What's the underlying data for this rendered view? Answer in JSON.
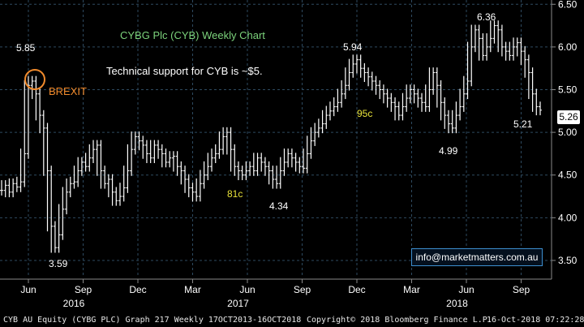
{
  "chart_data": {
    "type": "bar",
    "title": "CYBG Plc (CYB) Weekly Chart",
    "subtitle": "Technical support for CYB is ~$5.",
    "ylim": [
      3.3,
      6.55
    ],
    "y_ticks": [
      "3.50",
      "4.00",
      "4.50",
      "5.00",
      "5.50",
      "6.00",
      "6.50"
    ],
    "x_ticks": [
      {
        "label": "Jun",
        "year": "2016"
      },
      {
        "label": "Sep",
        "year": ""
      },
      {
        "label": "Dec",
        "year": ""
      },
      {
        "label": "Mar",
        "year": "2017"
      },
      {
        "label": "Jun",
        "year": ""
      },
      {
        "label": "Sep",
        "year": ""
      },
      {
        "label": "Dec",
        "year": ""
      },
      {
        "label": "Mar",
        "year": "2018"
      },
      {
        "label": "Jun",
        "year": ""
      },
      {
        "label": "Sep",
        "year": ""
      }
    ],
    "grid": true,
    "series": [
      {
        "values": [
          4.32,
          4.38,
          4.3,
          4.4,
          4.36,
          4.42,
          4.75,
          5.55,
          5.6,
          5.45,
          5.2,
          5.05,
          4.55,
          3.9,
          3.65,
          3.8,
          4.1,
          4.3,
          4.4,
          4.42,
          4.55,
          4.65,
          4.6,
          4.7,
          4.8,
          4.85,
          4.55,
          4.4,
          4.45,
          4.3,
          4.2,
          4.25,
          4.35,
          4.55,
          4.8,
          4.95,
          4.9,
          4.85,
          4.75,
          4.7,
          4.85,
          4.8,
          4.75,
          4.65,
          4.7,
          4.72,
          4.6,
          4.55,
          4.45,
          4.35,
          4.3,
          4.25,
          4.4,
          4.5,
          4.6,
          4.7,
          4.75,
          4.8,
          4.95,
          5.0,
          4.8,
          4.6,
          4.55,
          4.5,
          4.55,
          4.6,
          4.55,
          4.7,
          4.65,
          4.6,
          4.55,
          4.45,
          4.4,
          4.55,
          4.65,
          4.75,
          4.7,
          4.65,
          4.6,
          4.58,
          4.75,
          4.9,
          5.0,
          5.05,
          5.1,
          5.2,
          5.25,
          5.3,
          5.35,
          5.45,
          5.55,
          5.7,
          5.8,
          5.85,
          5.75,
          5.7,
          5.65,
          5.6,
          5.55,
          5.5,
          5.45,
          5.4,
          5.35,
          5.3,
          5.2,
          5.3,
          5.4,
          5.5,
          5.45,
          5.4,
          5.35,
          5.3,
          5.5,
          5.7,
          5.55,
          5.35,
          5.2,
          5.1,
          5.05,
          5.2,
          5.3,
          5.45,
          5.6,
          6.0,
          6.2,
          6.1,
          5.9,
          6.0,
          6.1,
          6.25,
          6.2,
          6.0,
          5.95,
          5.9,
          6.0,
          6.05,
          5.95,
          5.85,
          5.7,
          5.45,
          5.3,
          5.26
        ]
      }
    ],
    "annotations": [
      {
        "text": "5.85",
        "color": "#ffffff"
      },
      {
        "text": "BREXIT",
        "color": "#f08a2c"
      },
      {
        "text": "3.59",
        "color": "#ffffff"
      },
      {
        "text": "81c",
        "color": "#e8e23a"
      },
      {
        "text": "4.34",
        "color": "#ffffff"
      },
      {
        "text": "5.94",
        "color": "#ffffff"
      },
      {
        "text": "95c",
        "color": "#e8e23a"
      },
      {
        "text": "4.99",
        "color": "#ffffff"
      },
      {
        "text": "6.36",
        "color": "#ffffff"
      },
      {
        "text": "5.21",
        "color": "#ffffff"
      }
    ],
    "current_value": "5.26",
    "colors": {
      "background": "#000000",
      "grid": "#2e4a60",
      "bars": "#ffffff",
      "title": "#7cd37c",
      "highlight_circle": "#f08a2c"
    }
  },
  "watermark": "info@marketmatters.com.au",
  "footer": {
    "left": "CYB AU Equity (CYBG PLC) Graph 217  Weekly 17OCT2013-16OCT2018",
    "center": "Copyright© 2018 Bloomberg Finance L.P.",
    "right": "16-Oct-2018 07:22:28"
  }
}
